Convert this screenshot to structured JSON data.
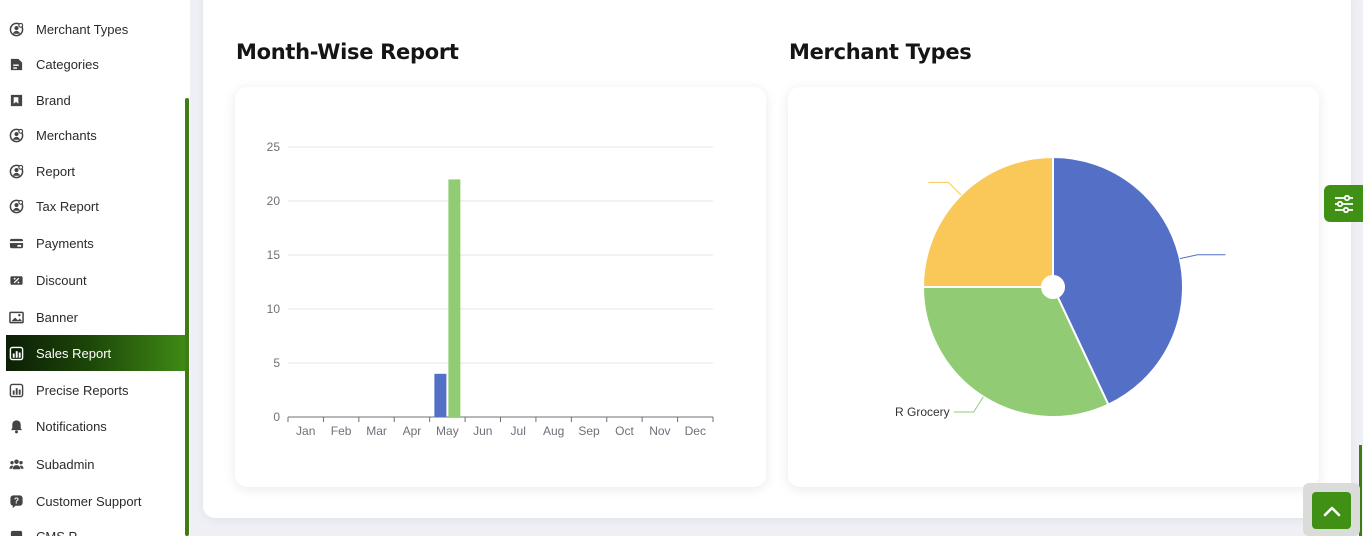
{
  "sidebar": {
    "items": [
      {
        "label": "Merchant Types",
        "icon": "merchant-types-icon"
      },
      {
        "label": "Categories",
        "icon": "categories-icon"
      },
      {
        "label": "Brand",
        "icon": "brand-icon"
      },
      {
        "label": "Merchants",
        "icon": "merchants-icon"
      },
      {
        "label": "Report",
        "icon": "report-icon"
      },
      {
        "label": "Tax Report",
        "icon": "tax-report-icon"
      },
      {
        "label": "Payments",
        "icon": "payments-icon"
      },
      {
        "label": "Discount",
        "icon": "discount-icon"
      },
      {
        "label": "Banner",
        "icon": "banner-icon"
      },
      {
        "label": "Sales Report",
        "icon": "sales-report-icon",
        "active": true
      },
      {
        "label": "Precise Reports",
        "icon": "precise-reports-icon"
      },
      {
        "label": "Notifications",
        "icon": "bell-icon"
      },
      {
        "label": "Subadmin",
        "icon": "users-icon"
      },
      {
        "label": "Customer Support",
        "icon": "support-icon"
      },
      {
        "label": "CMS P",
        "icon": "cms-icon"
      }
    ]
  },
  "sections": {
    "month_wise_title": "Month-Wise Report",
    "merchant_types_title": "Merchant Types"
  },
  "colors": {
    "accent": "#3f9015",
    "series_blue": "#5470c6",
    "series_green": "#91cc75",
    "series_yellow": "#fac858"
  },
  "chart_data": [
    {
      "type": "bar",
      "title": "",
      "categories": [
        "Jan",
        "Feb",
        "Mar",
        "Apr",
        "May",
        "Jun",
        "Jul",
        "Aug",
        "Sep",
        "Oct",
        "Nov",
        "Dec"
      ],
      "series": [
        {
          "values": [
            0,
            0,
            0,
            0,
            4,
            0,
            0,
            0,
            0,
            0,
            0,
            0
          ],
          "color": "#5470c6"
        },
        {
          "values": [
            0,
            0,
            0,
            0,
            22,
            0,
            0,
            0,
            0,
            0,
            0,
            0
          ],
          "color": "#91cc75"
        }
      ],
      "yticks": [
        0,
        5,
        10,
        15,
        20,
        25
      ],
      "ylim": [
        0,
        25
      ],
      "grid": true
    },
    {
      "type": "pie",
      "title": "",
      "slices": [
        {
          "label": "",
          "value": 43,
          "color": "#5470c6"
        },
        {
          "label": "R Grocery",
          "value": 32,
          "color": "#91cc75"
        },
        {
          "label": "",
          "value": 25,
          "color": "#fac858"
        }
      ]
    }
  ]
}
